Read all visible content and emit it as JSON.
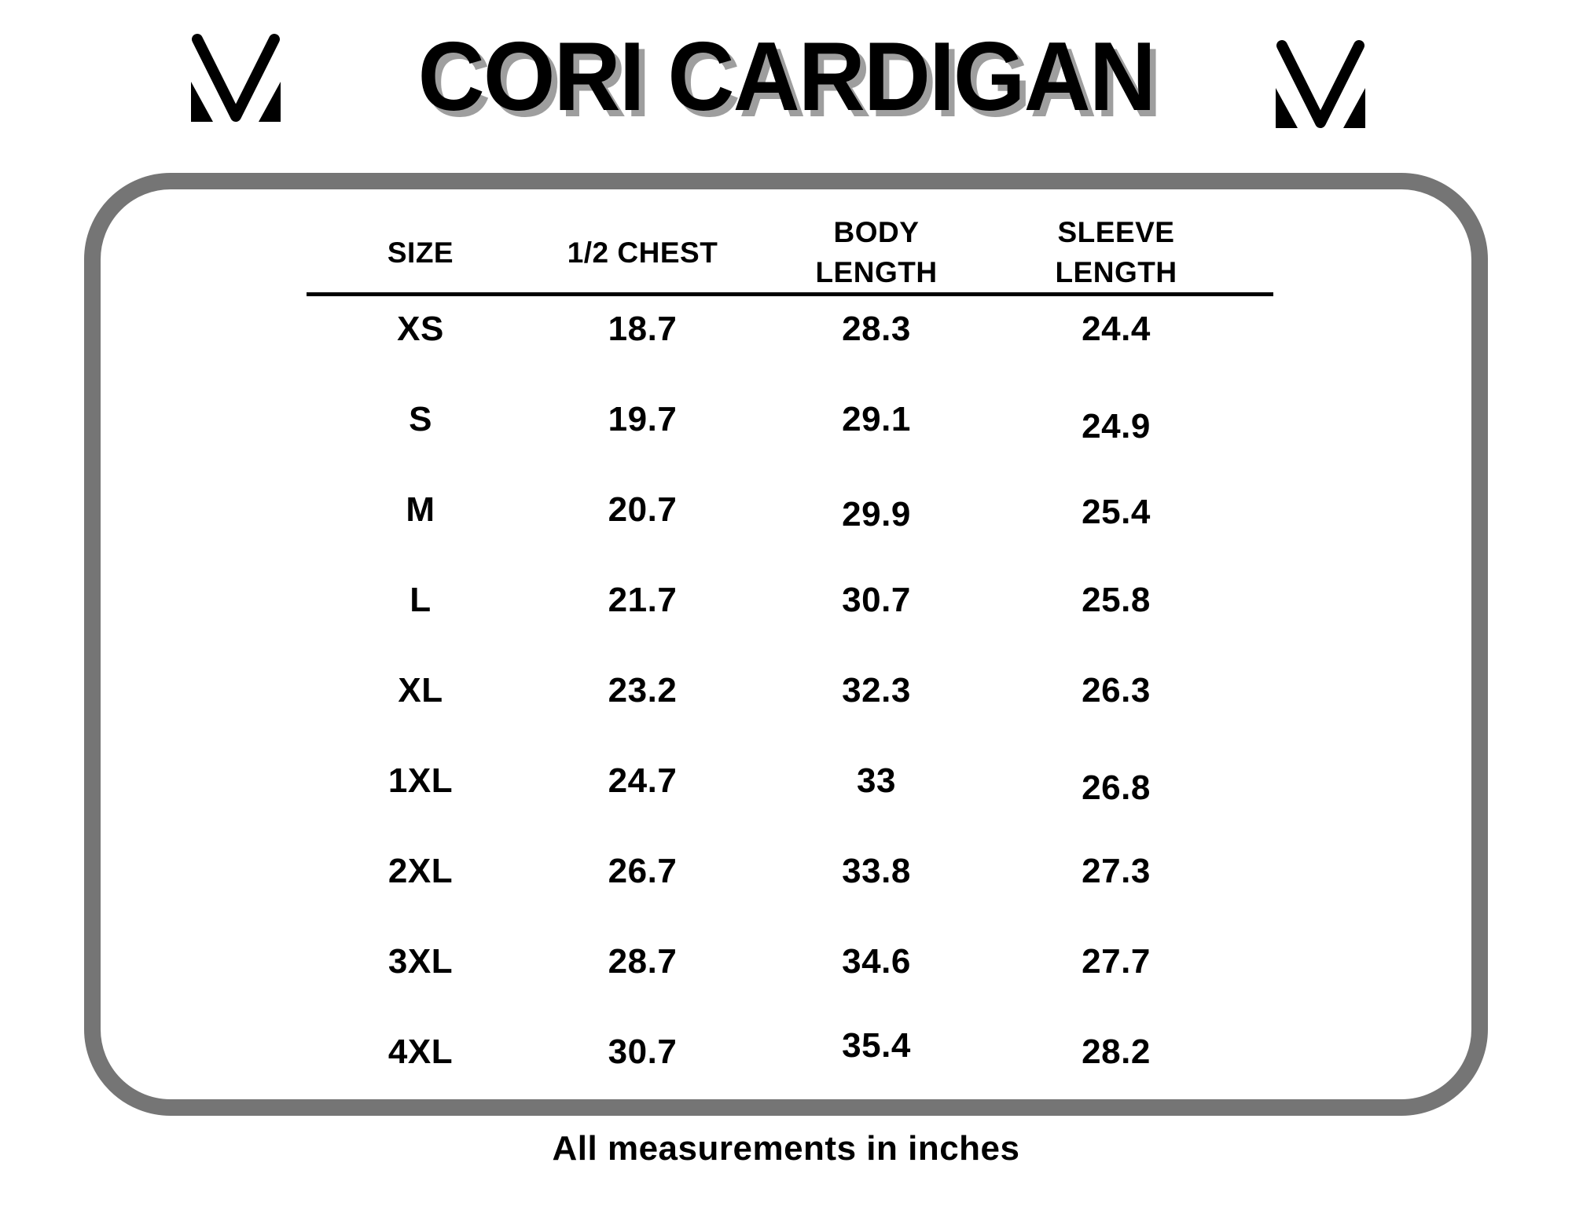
{
  "page": {
    "title": "CORI CARDIGAN",
    "footnote": "All measurements in inches"
  },
  "brand": {
    "logo_name": "mv-monogram"
  },
  "colors": {
    "background": "#ffffff",
    "text": "#000000",
    "border_gray": "#757575",
    "title_shadow": "#9e9e9e"
  },
  "size_chart": {
    "units": "inches",
    "headers": [
      "SIZE",
      "1/2 CHEST",
      "BODY\nLENGTH",
      "SLEEVE\nLENGTH"
    ],
    "rows": [
      {
        "size": "XS",
        "half_chest": "18.7",
        "body_length": "28.3",
        "sleeve_length": "24.4"
      },
      {
        "size": "S",
        "half_chest": "19.7",
        "body_length": "29.1",
        "sleeve_length": "24.9"
      },
      {
        "size": "M",
        "half_chest": "20.7",
        "body_length": "29.9",
        "sleeve_length": "25.4"
      },
      {
        "size": "L",
        "half_chest": "21.7",
        "body_length": "30.7",
        "sleeve_length": "25.8"
      },
      {
        "size": "XL",
        "half_chest": "23.2",
        "body_length": "32.3",
        "sleeve_length": "26.3"
      },
      {
        "size": "1XL",
        "half_chest": "24.7",
        "body_length": "33",
        "sleeve_length": "26.8"
      },
      {
        "size": "2XL",
        "half_chest": "26.7",
        "body_length": "33.8",
        "sleeve_length": "27.3"
      },
      {
        "size": "3XL",
        "half_chest": "28.7",
        "body_length": "34.6",
        "sleeve_length": "27.7"
      },
      {
        "size": "4XL",
        "half_chest": "30.7",
        "body_length": "35.4",
        "sleeve_length": "28.2"
      }
    ]
  }
}
